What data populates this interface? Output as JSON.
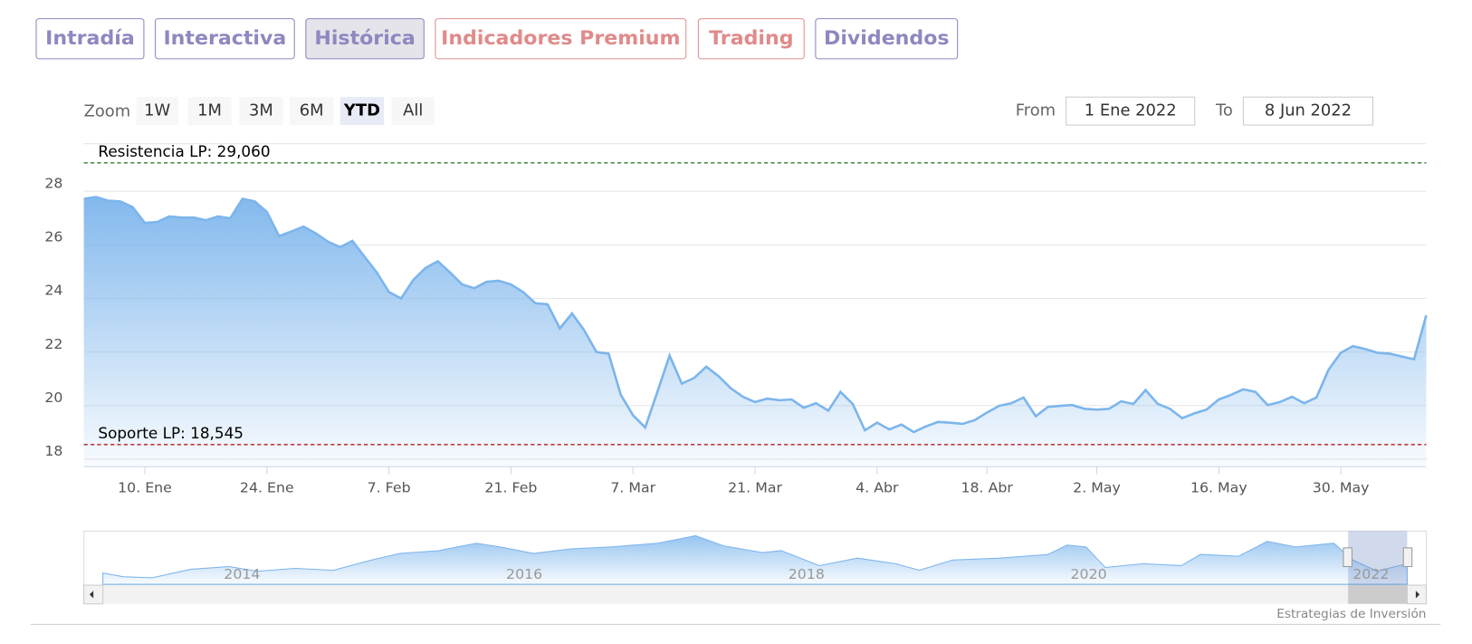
{
  "tabs": [
    "Intradía",
    "Interactiva",
    "Histórica",
    "Indicadores Premium",
    "Trading",
    "Dividendos"
  ],
  "range_selector": {
    "label": "Zoom",
    "buttons": [
      "1W",
      "1M",
      "3M",
      "6M",
      "YTD",
      "All"
    ],
    "from_label": "From",
    "from": "1 Ene 2022",
    "to_label": "To",
    "to": "8 Jun 2022"
  },
  "chart_data": {
    "type": "line",
    "color": "#7cb5ec",
    "categories": [
      null,
      null,
      null,
      null,
      null,
      "10. Ene",
      null,
      null,
      null,
      null,
      null,
      null,
      null,
      null,
      null,
      "24. Ene",
      null,
      null,
      null,
      null,
      null,
      null,
      null,
      null,
      null,
      "7. Feb",
      null,
      null,
      null,
      null,
      null,
      null,
      null,
      null,
      null,
      "21. Feb",
      null,
      null,
      null,
      null,
      null,
      null,
      null,
      null,
      null,
      "7. Mar",
      null,
      null,
      null,
      null,
      null,
      null,
      null,
      null,
      null,
      "21. Mar",
      null,
      null,
      null,
      null,
      null,
      null,
      null,
      null,
      null,
      "4. Abr",
      null,
      null,
      null,
      null,
      null,
      null,
      null,
      null,
      "18. Abr",
      null,
      null,
      null,
      null,
      null,
      null,
      null,
      null,
      "2. May",
      null,
      null,
      null,
      null,
      null,
      null,
      null,
      null,
      null,
      "16. May",
      null,
      null,
      null,
      null,
      null,
      null,
      null,
      null,
      null,
      "30. May",
      null,
      null,
      null,
      null,
      null,
      null,
      null
    ],
    "values": [
      27.72,
      27.79,
      27.65,
      27.62,
      27.41,
      26.82,
      26.85,
      27.06,
      27.02,
      27.02,
      26.92,
      27.06,
      26.99,
      27.72,
      27.62,
      27.23,
      26.33,
      26.5,
      26.68,
      26.43,
      26.12,
      25.91,
      26.15,
      25.56,
      24.97,
      24.24,
      24.0,
      24.69,
      25.14,
      25.39,
      24.97,
      24.52,
      24.38,
      24.62,
      24.66,
      24.52,
      24.24,
      23.82,
      23.78,
      22.88,
      23.44,
      22.81,
      22.0,
      21.94,
      20.4,
      19.64,
      19.18,
      20.51,
      21.87,
      20.82,
      21.03,
      21.45,
      21.1,
      20.65,
      20.33,
      20.13,
      20.26,
      20.2,
      20.23,
      19.92,
      20.09,
      19.81,
      20.51,
      20.06,
      19.08,
      19.36,
      19.11,
      19.29,
      19.01,
      19.22,
      19.39,
      19.36,
      19.32,
      19.46,
      19.74,
      19.99,
      20.09,
      20.3,
      19.6,
      19.95,
      19.99,
      20.02,
      19.88,
      19.85,
      19.88,
      20.16,
      20.06,
      20.58,
      20.06,
      19.88,
      19.53,
      19.71,
      19.85,
      20.23,
      20.4,
      20.61,
      20.51,
      20.02,
      20.13,
      20.33,
      20.09,
      20.3,
      21.34,
      21.97,
      22.22,
      22.11,
      21.97,
      21.94,
      21.83,
      21.73,
      23.37
    ],
    "ylim": [
      17.72,
      29.74
    ],
    "yticks": [
      18,
      20,
      22,
      24,
      26,
      28
    ],
    "grid": true,
    "plot_lines": [
      {
        "label": "Resistencia LP: 29,060",
        "value": 29.06,
        "color": "#2e7d32"
      },
      {
        "label": "Soporte LP: 18,545",
        "value": 18.545,
        "color": "#b71c1c"
      }
    ]
  },
  "navigator": {
    "labels": [
      "2014",
      "2016",
      "2018",
      "2020",
      "2022"
    ]
  },
  "credits": "Estrategias de Inversión"
}
